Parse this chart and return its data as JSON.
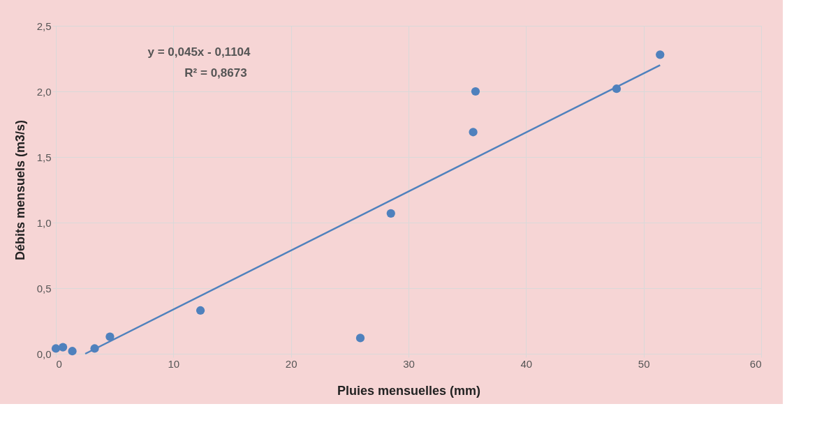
{
  "chart_data": {
    "type": "scatter",
    "xlabel": "Pluies mensuelles  (mm)",
    "ylabel": "Débits mensuels  (m3/s)",
    "x": [
      0,
      0.6,
      1.4,
      3.3,
      4.6,
      12.3,
      25.9,
      28.5,
      35.5,
      35.7,
      47.7,
      51.4
    ],
    "series": [
      {
        "color": "#4f81bd",
        "marker": "circle",
        "values": [
          0.04,
          0.05,
          0.02,
          0.04,
          0.13,
          0.33,
          0.12,
          1.07,
          1.69,
          2.0,
          2.02,
          2.28
        ]
      },
      {
        "type": "line",
        "color": "#4f81bd",
        "line_style": "solid",
        "x": [
          2.5,
          51.4
        ],
        "values": [
          0.0,
          2.2
        ]
      }
    ],
    "xlim": [
      0,
      60
    ],
    "xticks": [
      0,
      10,
      20,
      30,
      40,
      50,
      60
    ],
    "ylim": [
      0,
      2.5
    ],
    "yticks": [
      {
        "value": 0,
        "label": "0,0"
      },
      {
        "value": 0.5,
        "label": "0,5"
      },
      {
        "value": 1,
        "label": "1,0"
      },
      {
        "value": 1.5,
        "label": "1,5"
      },
      {
        "value": 2,
        "label": "2,0"
      },
      {
        "value": 2.5,
        "label": "2,5"
      }
    ],
    "grid": true,
    "annotations": [
      "y = 0,045x - 0,1104",
      "R² = 0,8673"
    ]
  }
}
